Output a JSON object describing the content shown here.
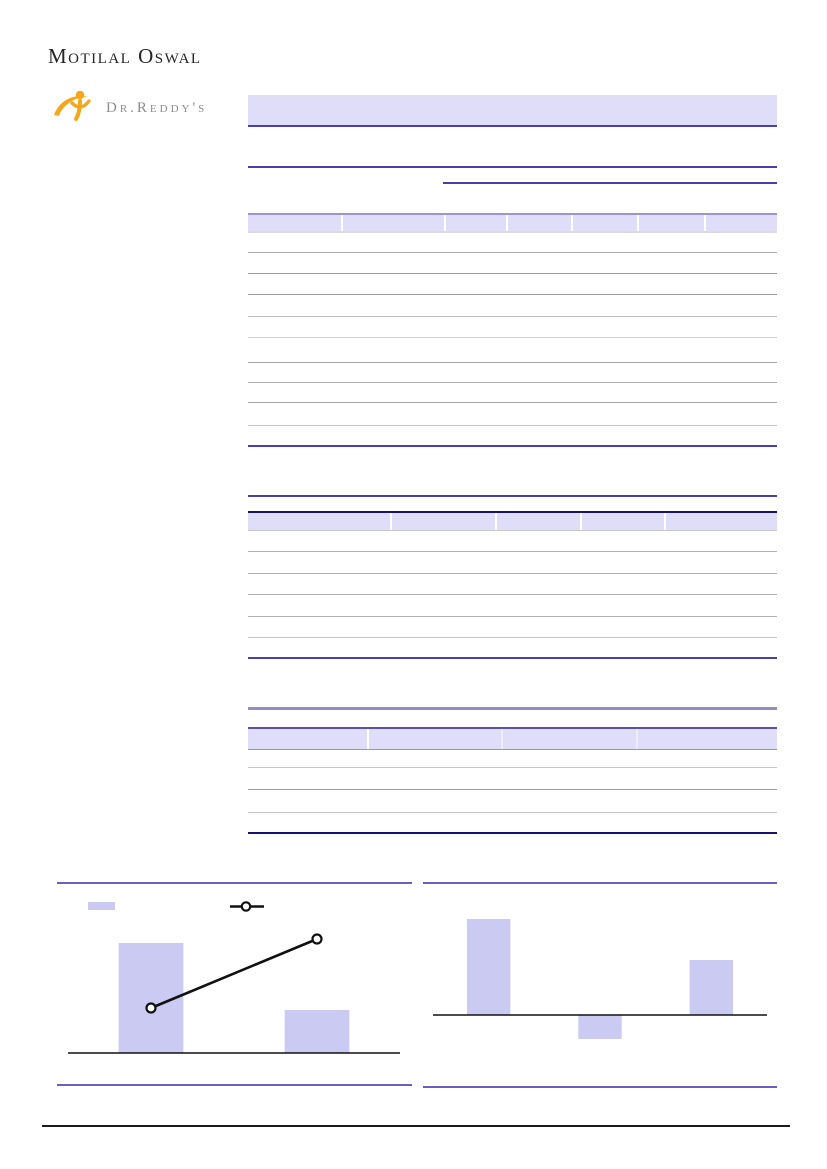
{
  "brand": {
    "firm_logo_text": "Motilal Oswal",
    "company_logo_text": "Dr.Reddy's"
  },
  "colors": {
    "accent": "#4a3fa8",
    "lavender": "#dfddf8",
    "barfill": "#cbcaf3",
    "navy": "#17126b",
    "rulepurple": "#918dc9",
    "orange": "#f5a71c",
    "logogray": "#8d8d8d",
    "ink": "#262626"
  },
  "tables": {
    "note": "Three data tables and the title bar are rendered with blank cells in the source image (text layer not visible); only header bands, rules and gridlines are shown."
  },
  "chart_data": [
    {
      "type": "bar+line",
      "title": "",
      "categories": [
        "",
        ""
      ],
      "series": [
        {
          "name": "",
          "type": "bar",
          "values": [
            110,
            43
          ]
        },
        {
          "name": "",
          "type": "line",
          "values": [
            45,
            114
          ]
        }
      ],
      "ylim": [
        0,
        130
      ],
      "value_units": "relative (no axis labels visible)",
      "legend_position": "top",
      "grid": false,
      "axis_labels_visible": false
    },
    {
      "type": "bar",
      "title": "",
      "categories": [
        "",
        "",
        ""
      ],
      "values": [
        96,
        -24,
        55
      ],
      "ylim": [
        -40,
        110
      ],
      "value_units": "relative (no axis labels visible)",
      "grid": false,
      "axis_labels_visible": false
    }
  ]
}
